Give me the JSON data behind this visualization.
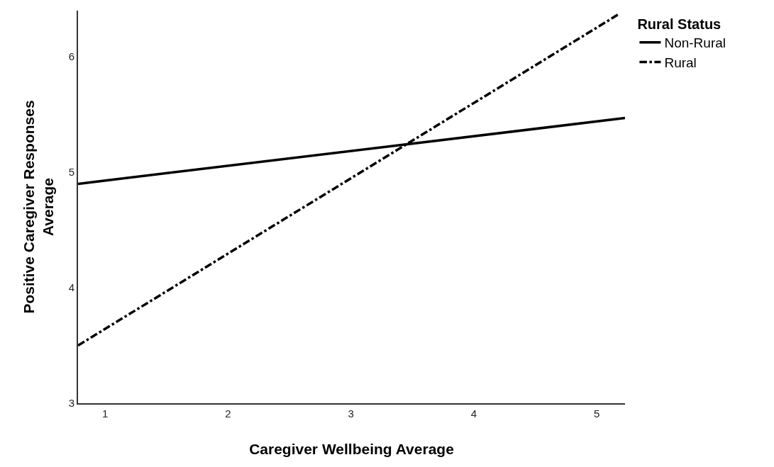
{
  "chart_data": {
    "type": "line",
    "xlabel": "Caregiver Wellbeing Average",
    "ylabel": "Positive Caregiver Responses Average",
    "legend_title": "Rural Status",
    "xlim": [
      0.78,
      5.23
    ],
    "xticks": [
      1,
      2,
      3,
      4,
      5
    ],
    "ylim": [
      3,
      6.4
    ],
    "yticks": [
      3,
      4,
      5,
      6
    ],
    "legend": "top right",
    "marker": "none",
    "series": [
      {
        "name": "Non-Rural",
        "color": "#000000",
        "line_style": "solid",
        "x": [
          0.78,
          5.23
        ],
        "values": [
          4.9,
          5.47
        ]
      },
      {
        "name": "Rural",
        "color": "#000000",
        "line_style": "dashdot",
        "x": [
          0.78,
          5.18
        ],
        "values": [
          3.5,
          6.37
        ]
      }
    ]
  }
}
